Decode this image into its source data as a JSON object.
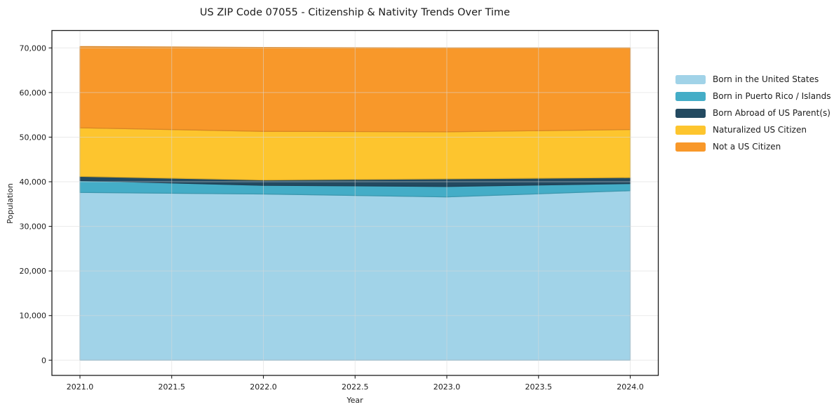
{
  "page": {
    "background": "#ffffff"
  },
  "chart_data": {
    "type": "area",
    "stacked": true,
    "title": "US ZIP Code 07055 - Citizenship & Nativity Trends Over Time",
    "xlabel": "Year",
    "ylabel": "Population",
    "x": [
      2021,
      2022,
      2023,
      2024
    ],
    "series": [
      {
        "name": "Born in the United States",
        "color": "#a1d3e8",
        "values": [
          37600,
          37250,
          36600,
          38000
        ]
      },
      {
        "name": "Born in Puerto Rico / Islands",
        "color": "#44adc7",
        "values": [
          2650,
          1950,
          2350,
          1600
        ]
      },
      {
        "name": "Born Abroad of US Parent(s)",
        "color": "#234a61",
        "values": [
          950,
          1200,
          1700,
          1350
        ]
      },
      {
        "name": "Naturalized US Citizen",
        "color": "#fdc52e",
        "values": [
          10900,
          10900,
          10550,
          10750
        ]
      },
      {
        "name": "Not a US Citizen",
        "color": "#f8982a",
        "values": [
          18200,
          18800,
          18800,
          18300
        ]
      }
    ],
    "stacked_totals": [
      70300,
      70100,
      70000,
      70000
    ],
    "xticks": [
      2021,
      2021.5,
      2022,
      2022.5,
      2023,
      2023.5,
      2024
    ],
    "xtick_labels": [
      "2021.0",
      "2021.5",
      "2022.0",
      "2022.5",
      "2023.0",
      "2023.5",
      "2024.0"
    ],
    "yticks": [
      0,
      10000,
      20000,
      30000,
      40000,
      50000,
      60000,
      70000
    ],
    "ytick_labels": [
      "0",
      "10,000",
      "20,000",
      "30,000",
      "40,000",
      "50,000",
      "60,000",
      "70,000"
    ],
    "xlim": [
      2020.84,
      2024.16
    ],
    "ylim": [
      -3500,
      73800
    ],
    "grid": true,
    "legend_position": "outside-right"
  }
}
